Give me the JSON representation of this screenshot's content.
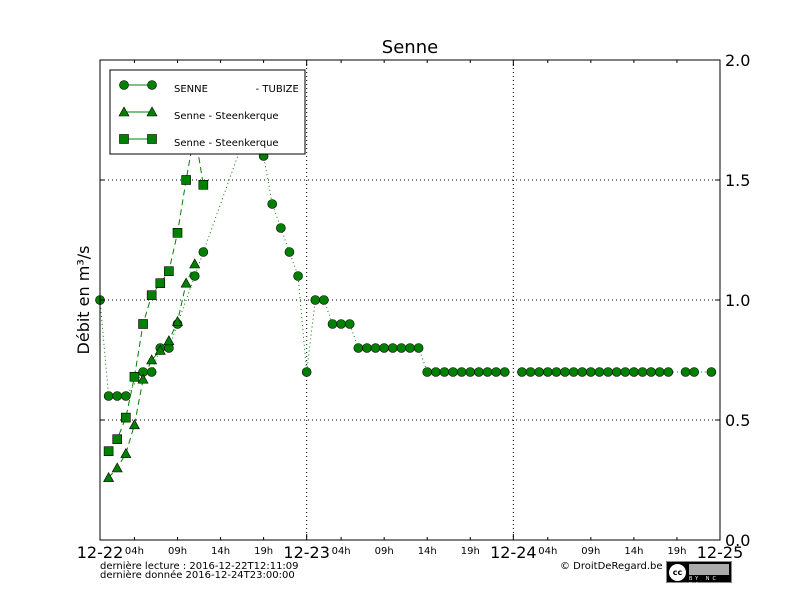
{
  "chart_data": {
    "type": "line",
    "title": "Senne",
    "ylabel": "Débit en m³/s",
    "xlabel": "",
    "ylim": [
      0,
      2.0
    ],
    "xlim": [
      "2016-12-22T00:00",
      "2016-12-25T00:00"
    ],
    "grid": true,
    "legend_position": "top-left",
    "major_ticks": [
      "12-22",
      "12-23",
      "12-24",
      "12-25"
    ],
    "minor_ticks": [
      "04h",
      "09h",
      "14h",
      "19h"
    ],
    "yticks": [
      "0.0",
      "0.5",
      "1.0",
      "1.5",
      "2.0"
    ],
    "color": "#008000",
    "series": [
      {
        "name": "SENNE               - TUBIZE",
        "marker": "circle",
        "line": "dotted",
        "points": [
          [
            "12-22 00h",
            1.0
          ],
          [
            "12-22 01h",
            0.6
          ],
          [
            "12-22 02h",
            0.6
          ],
          [
            "12-22 03h",
            0.6
          ],
          [
            "12-22 05h",
            0.7
          ],
          [
            "12-22 06h",
            0.7
          ],
          [
            "12-22 07h",
            0.8
          ],
          [
            "12-22 08h",
            0.8
          ],
          [
            "12-22 09h",
            0.9
          ],
          [
            "12-22 11h",
            1.1
          ],
          [
            "12-22 12h",
            1.2
          ],
          [
            "12-22 18h",
            1.8
          ],
          [
            "12-22 19h",
            1.6
          ],
          [
            "12-22 20h",
            1.4
          ],
          [
            "12-22 21h",
            1.3
          ],
          [
            "12-22 22h",
            1.2
          ],
          [
            "12-22 23h",
            1.1
          ],
          [
            "12-23 00h",
            0.7
          ],
          [
            "12-23 01h",
            1.0
          ],
          [
            "12-23 02h",
            1.0
          ],
          [
            "12-23 03h",
            0.9
          ],
          [
            "12-23 04h",
            0.9
          ],
          [
            "12-23 05h",
            0.9
          ],
          [
            "12-23 06h",
            0.8
          ],
          [
            "12-23 07h",
            0.8
          ],
          [
            "12-23 08h",
            0.8
          ],
          [
            "12-23 09h",
            0.8
          ],
          [
            "12-23 10h",
            0.8
          ],
          [
            "12-23 11h",
            0.8
          ],
          [
            "12-23 12h",
            0.8
          ],
          [
            "12-23 13h",
            0.8
          ],
          [
            "12-23 14h",
            0.7
          ],
          [
            "12-23 15h",
            0.7
          ],
          [
            "12-23 16h",
            0.7
          ],
          [
            "12-23 17h",
            0.7
          ],
          [
            "12-23 18h",
            0.7
          ],
          [
            "12-23 19h",
            0.7
          ],
          [
            "12-23 20h",
            0.7
          ],
          [
            "12-23 21h",
            0.7
          ],
          [
            "12-23 22h",
            0.7
          ],
          [
            "12-23 23h",
            0.7
          ],
          [
            "12-24 01h",
            0.7
          ],
          [
            "12-24 02h",
            0.7
          ],
          [
            "12-24 03h",
            0.7
          ],
          [
            "12-24 04h",
            0.7
          ],
          [
            "12-24 05h",
            0.7
          ],
          [
            "12-24 06h",
            0.7
          ],
          [
            "12-24 07h",
            0.7
          ],
          [
            "12-24 08h",
            0.7
          ],
          [
            "12-24 09h",
            0.7
          ],
          [
            "12-24 10h",
            0.7
          ],
          [
            "12-24 11h",
            0.7
          ],
          [
            "12-24 12h",
            0.7
          ],
          [
            "12-24 13h",
            0.7
          ],
          [
            "12-24 14h",
            0.7
          ],
          [
            "12-24 15h",
            0.7
          ],
          [
            "12-24 16h",
            0.7
          ],
          [
            "12-24 17h",
            0.7
          ],
          [
            "12-24 18h",
            0.7
          ],
          [
            "12-24 20h",
            0.7
          ],
          [
            "12-24 21h",
            0.7
          ],
          [
            "12-24 23h",
            0.7
          ]
        ]
      },
      {
        "name": "Senne - Steenkerque",
        "marker": "triangle",
        "line": "dashed",
        "points": [
          [
            "12-22 01h",
            0.26
          ],
          [
            "12-22 02h",
            0.3
          ],
          [
            "12-22 03h",
            0.36
          ],
          [
            "12-22 04h",
            0.48
          ],
          [
            "12-22 05h",
            0.67
          ],
          [
            "12-22 06h",
            0.75
          ],
          [
            "12-22 07h",
            0.79
          ],
          [
            "12-22 08h",
            0.83
          ],
          [
            "12-22 09h",
            0.91
          ],
          [
            "12-22 10h",
            1.07
          ],
          [
            "12-22 11h",
            1.15
          ]
        ]
      },
      {
        "name": "Senne - Steenkerque",
        "marker": "square",
        "line": "dashed",
        "points": [
          [
            "12-22 01h",
            0.37
          ],
          [
            "12-22 02h",
            0.42
          ],
          [
            "12-22 03h",
            0.51
          ],
          [
            "12-22 04h",
            0.68
          ],
          [
            "12-22 05h",
            0.9
          ],
          [
            "12-22 06h",
            1.02
          ],
          [
            "12-22 07h",
            1.07
          ],
          [
            "12-22 08h",
            1.12
          ],
          [
            "12-22 09h",
            1.28
          ],
          [
            "12-22 10h",
            1.5
          ],
          [
            "12-22 11h",
            1.7
          ],
          [
            "12-22 12h",
            1.48
          ]
        ]
      }
    ]
  },
  "footer": {
    "last_read": "dernière lecture : 2016-12-22T12:11:09",
    "last_data": "dernière donnée  2016-12-24T23:00:00",
    "copyright": "© DroitDeRegard.be",
    "license_logo": "cc BY NC SA"
  }
}
